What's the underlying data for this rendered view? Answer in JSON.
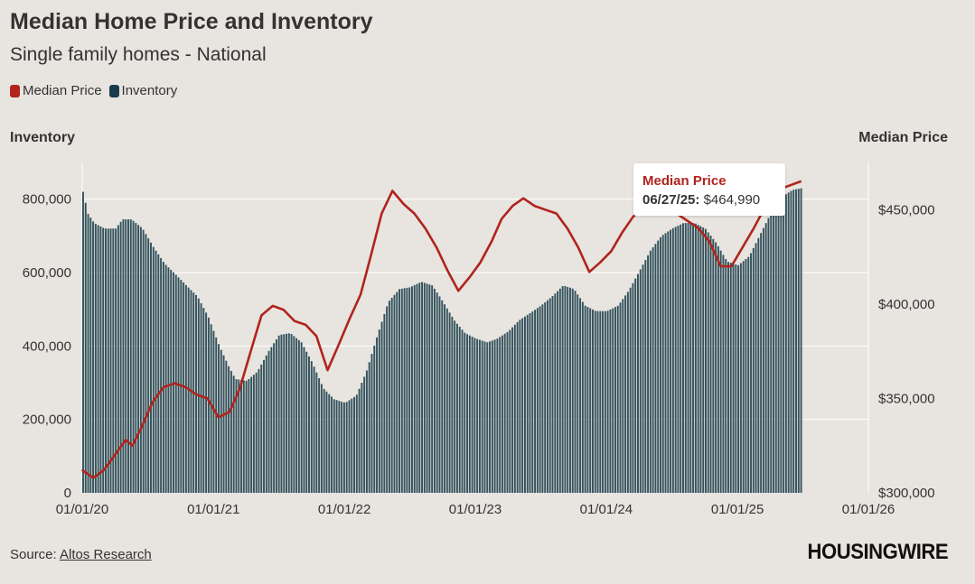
{
  "header": {
    "title": "Median Home Price and Inventory",
    "subtitle": "Single family homes - National"
  },
  "legend": {
    "items": [
      {
        "label": "Median Price",
        "color": "#b0241d"
      },
      {
        "label": "Inventory",
        "color": "#1c3b4a"
      }
    ]
  },
  "axes": {
    "left_title": "Inventory",
    "right_title": "Median Price"
  },
  "tooltip": {
    "title": "Median Price",
    "date": "06/27/25:",
    "value": "$464,990"
  },
  "footer": {
    "source_prefix": "Source: ",
    "source_link": "Altos Research",
    "logo": "HOUSINGWIRE"
  },
  "chart_data": {
    "type": "bar",
    "colors": {
      "inventory": "#34535e",
      "price": "#b0241d",
      "grid": "#ffffff"
    },
    "x": {
      "ticks": [
        "01/01/20",
        "01/01/21",
        "01/01/22",
        "01/01/23",
        "01/01/24",
        "01/01/25",
        "01/01/26"
      ],
      "range": [
        "2020-01-01",
        "2026-01-01"
      ]
    },
    "y_left": {
      "ticks": [
        "0",
        "200,000",
        "400,000",
        "600,000",
        "800,000"
      ],
      "tick_values": [
        0,
        200000,
        400000,
        600000,
        800000
      ],
      "range": [
        0,
        900000
      ]
    },
    "y_right": {
      "ticks": [
        "$300,000",
        "$350,000",
        "$400,000",
        "$450,000"
      ],
      "tick_values": [
        300000,
        350000,
        400000,
        450000
      ],
      "range": [
        300000,
        475000
      ]
    },
    "series": [
      {
        "name": "Inventory",
        "type": "bar",
        "points": [
          [
            "2020-01-01",
            820000
          ],
          [
            "2020-01-15",
            760000
          ],
          [
            "2020-02-01",
            735000
          ],
          [
            "2020-03-01",
            720000
          ],
          [
            "2020-04-01",
            720000
          ],
          [
            "2020-04-20",
            745000
          ],
          [
            "2020-05-15",
            745000
          ],
          [
            "2020-06-15",
            720000
          ],
          [
            "2020-07-15",
            670000
          ],
          [
            "2020-08-15",
            625000
          ],
          [
            "2020-09-15",
            595000
          ],
          [
            "2020-10-15",
            565000
          ],
          [
            "2020-11-15",
            535000
          ],
          [
            "2020-12-15",
            480000
          ],
          [
            "2021-01-15",
            400000
          ],
          [
            "2021-02-10",
            345000
          ],
          [
            "2021-03-01",
            310000
          ],
          [
            "2021-04-01",
            305000
          ],
          [
            "2021-05-01",
            330000
          ],
          [
            "2021-06-01",
            385000
          ],
          [
            "2021-07-01",
            430000
          ],
          [
            "2021-08-01",
            435000
          ],
          [
            "2021-09-01",
            410000
          ],
          [
            "2021-10-01",
            355000
          ],
          [
            "2021-11-01",
            285000
          ],
          [
            "2021-12-01",
            255000
          ],
          [
            "2022-01-01",
            245000
          ],
          [
            "2022-02-01",
            265000
          ],
          [
            "2022-03-01",
            330000
          ],
          [
            "2022-04-01",
            430000
          ],
          [
            "2022-05-01",
            520000
          ],
          [
            "2022-06-01",
            555000
          ],
          [
            "2022-07-01",
            560000
          ],
          [
            "2022-08-01",
            575000
          ],
          [
            "2022-09-01",
            565000
          ],
          [
            "2022-10-01",
            520000
          ],
          [
            "2022-11-01",
            470000
          ],
          [
            "2022-12-01",
            435000
          ],
          [
            "2023-01-01",
            420000
          ],
          [
            "2023-02-01",
            410000
          ],
          [
            "2023-03-01",
            420000
          ],
          [
            "2023-04-01",
            440000
          ],
          [
            "2023-05-01",
            470000
          ],
          [
            "2023-06-01",
            490000
          ],
          [
            "2023-07-01",
            510000
          ],
          [
            "2023-08-01",
            535000
          ],
          [
            "2023-09-01",
            565000
          ],
          [
            "2023-10-01",
            555000
          ],
          [
            "2023-11-01",
            510000
          ],
          [
            "2023-12-01",
            495000
          ],
          [
            "2024-01-01",
            495000
          ],
          [
            "2024-02-01",
            510000
          ],
          [
            "2024-03-01",
            550000
          ],
          [
            "2024-04-01",
            605000
          ],
          [
            "2024-05-01",
            660000
          ],
          [
            "2024-06-01",
            700000
          ],
          [
            "2024-07-01",
            720000
          ],
          [
            "2024-08-01",
            735000
          ],
          [
            "2024-09-01",
            735000
          ],
          [
            "2024-10-01",
            720000
          ],
          [
            "2024-11-01",
            680000
          ],
          [
            "2024-12-01",
            630000
          ],
          [
            "2025-01-01",
            620000
          ],
          [
            "2025-02-01",
            645000
          ],
          [
            "2025-03-01",
            700000
          ],
          [
            "2025-04-01",
            760000
          ],
          [
            "2025-05-01",
            805000
          ],
          [
            "2025-06-01",
            825000
          ],
          [
            "2025-06-27",
            830000
          ]
        ]
      },
      {
        "name": "Median Price",
        "type": "line",
        "points": [
          [
            "2020-01-01",
            312000
          ],
          [
            "2020-02-01",
            308000
          ],
          [
            "2020-03-01",
            312000
          ],
          [
            "2020-04-01",
            320000
          ],
          [
            "2020-05-01",
            328000
          ],
          [
            "2020-05-20",
            325000
          ],
          [
            "2020-06-15",
            335000
          ],
          [
            "2020-07-15",
            348000
          ],
          [
            "2020-08-15",
            356000
          ],
          [
            "2020-09-15",
            358000
          ],
          [
            "2020-10-15",
            356000
          ],
          [
            "2020-11-15",
            352000
          ],
          [
            "2020-12-15",
            350000
          ],
          [
            "2021-01-15",
            340000
          ],
          [
            "2021-02-15",
            343000
          ],
          [
            "2021-03-15",
            355000
          ],
          [
            "2021-04-15",
            375000
          ],
          [
            "2021-05-15",
            394000
          ],
          [
            "2021-06-15",
            399000
          ],
          [
            "2021-07-15",
            397000
          ],
          [
            "2021-08-15",
            391000
          ],
          [
            "2021-09-15",
            389000
          ],
          [
            "2021-10-15",
            383000
          ],
          [
            "2021-11-15",
            365000
          ],
          [
            "2021-12-15",
            378000
          ],
          [
            "2022-01-15",
            392000
          ],
          [
            "2022-02-15",
            405000
          ],
          [
            "2022-03-15",
            425000
          ],
          [
            "2022-04-15",
            448000
          ],
          [
            "2022-05-15",
            460000
          ],
          [
            "2022-06-15",
            453000
          ],
          [
            "2022-07-15",
            448000
          ],
          [
            "2022-08-15",
            440000
          ],
          [
            "2022-09-15",
            430000
          ],
          [
            "2022-10-15",
            418000
          ],
          [
            "2022-11-15",
            407000
          ],
          [
            "2022-12-15",
            414000
          ],
          [
            "2023-01-15",
            422000
          ],
          [
            "2023-02-15",
            433000
          ],
          [
            "2023-03-15",
            445000
          ],
          [
            "2023-04-15",
            452000
          ],
          [
            "2023-05-15",
            456000
          ],
          [
            "2023-06-15",
            452000
          ],
          [
            "2023-07-15",
            450000
          ],
          [
            "2023-08-15",
            448000
          ],
          [
            "2023-09-15",
            440000
          ],
          [
            "2023-10-15",
            430000
          ],
          [
            "2023-11-15",
            417000
          ],
          [
            "2023-12-15",
            422000
          ],
          [
            "2024-01-15",
            428000
          ],
          [
            "2024-02-15",
            438000
          ],
          [
            "2024-03-15",
            446000
          ],
          [
            "2024-04-15",
            452000
          ],
          [
            "2024-05-15",
            453000
          ],
          [
            "2024-06-15",
            450000
          ],
          [
            "2024-07-15",
            448000
          ],
          [
            "2024-08-15",
            444000
          ],
          [
            "2024-09-15",
            440000
          ],
          [
            "2024-10-15",
            433000
          ],
          [
            "2024-11-15",
            420000
          ],
          [
            "2024-12-15",
            420000
          ],
          [
            "2025-01-15",
            430000
          ],
          [
            "2025-02-15",
            440000
          ],
          [
            "2025-03-15",
            450000
          ],
          [
            "2025-04-15",
            458000
          ],
          [
            "2025-05-15",
            462000
          ],
          [
            "2025-06-27",
            464990
          ]
        ]
      }
    ]
  }
}
